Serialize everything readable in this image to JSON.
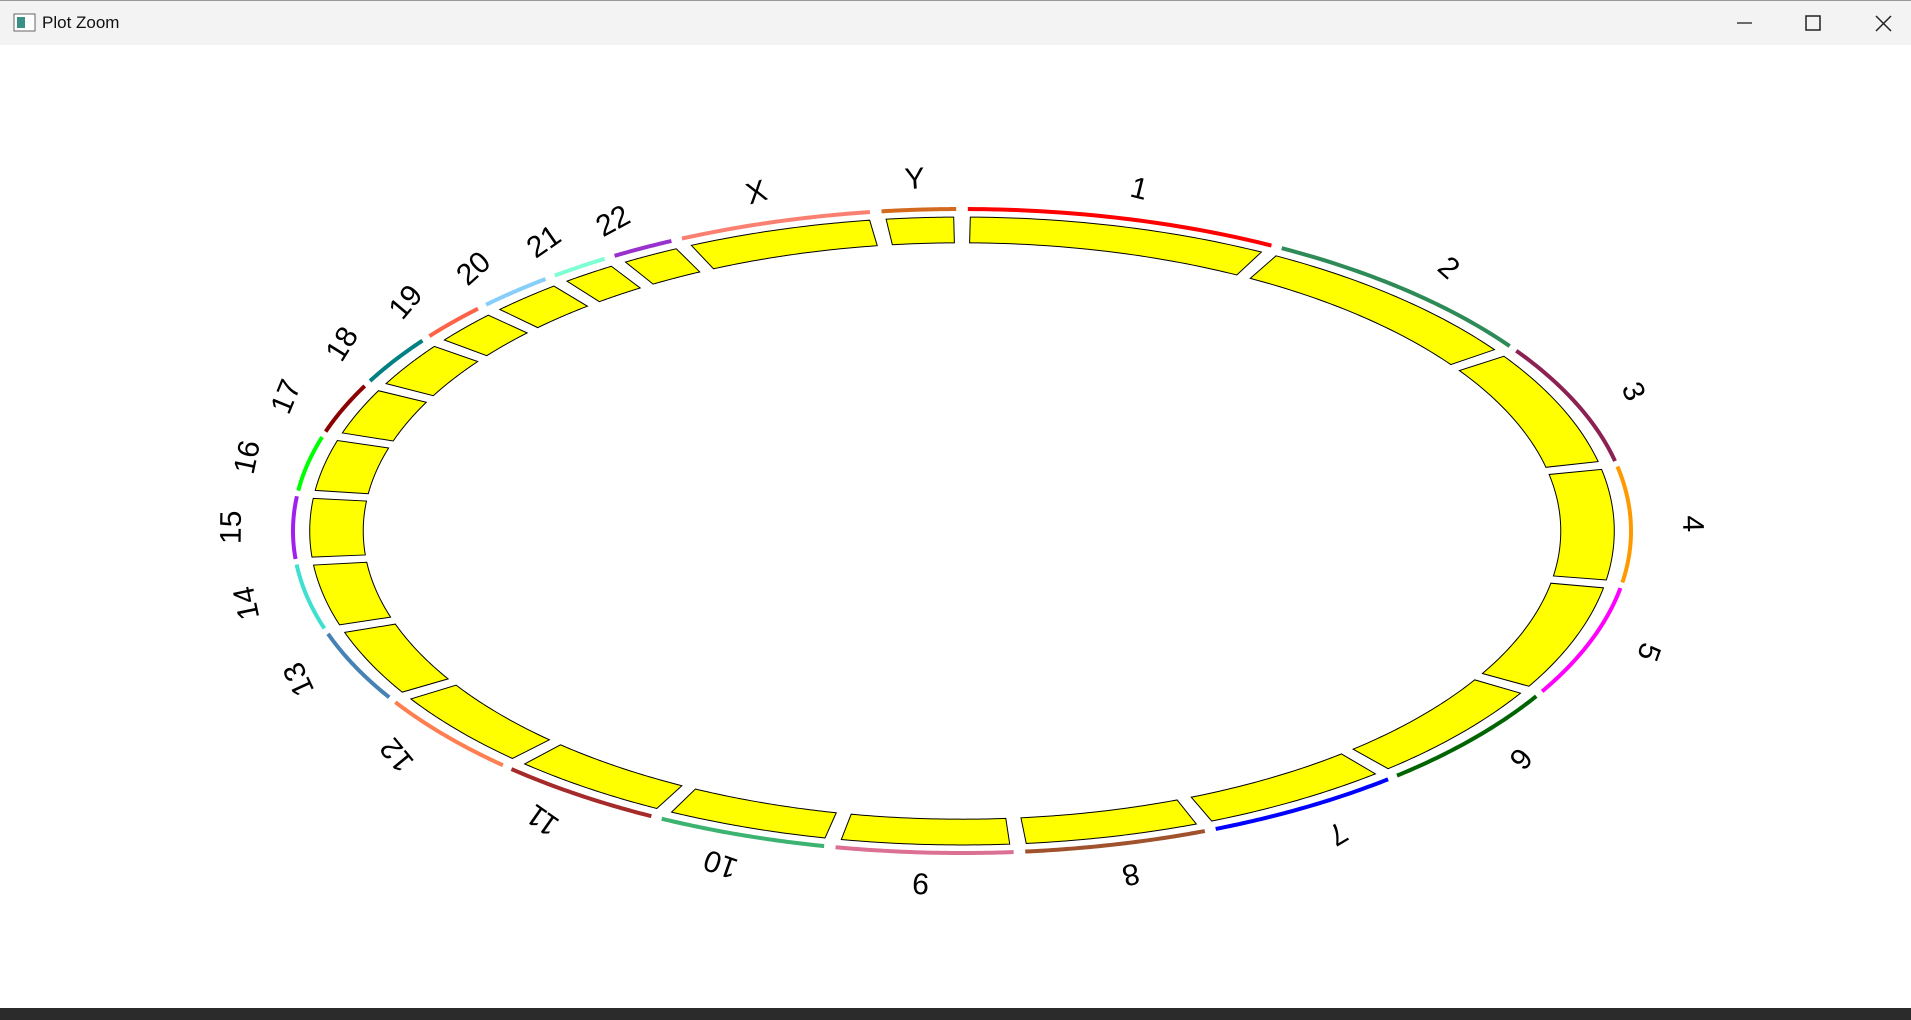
{
  "window": {
    "title": "Plot Zoom"
  },
  "sectors": [
    {
      "label": "1",
      "color": "#ff0000",
      "size": 249
    },
    {
      "label": "2",
      "color": "#2e8b57",
      "size": 243
    },
    {
      "label": "3",
      "color": "#8b2252",
      "size": 198
    },
    {
      "label": "4",
      "color": "#ff9900",
      "size": 191
    },
    {
      "label": "5",
      "color": "#ff00ff",
      "size": 181
    },
    {
      "label": "6",
      "color": "#006400",
      "size": 171
    },
    {
      "label": "7",
      "color": "#0000ff",
      "size": 159
    },
    {
      "label": "8",
      "color": "#a0522d",
      "size": 146
    },
    {
      "label": "9",
      "color": "#db7093",
      "size": 141
    },
    {
      "label": "10",
      "color": "#3cb371",
      "size": 136
    },
    {
      "label": "11",
      "color": "#a52a2a",
      "size": 135
    },
    {
      "label": "12",
      "color": "#ff7f50",
      "size": 134
    },
    {
      "label": "13",
      "color": "#4682b4",
      "size": 115
    },
    {
      "label": "14",
      "color": "#40e0d0",
      "size": 107
    },
    {
      "label": "15",
      "color": "#a020f0",
      "size": 103
    },
    {
      "label": "16",
      "color": "#00ff00",
      "size": 90
    },
    {
      "label": "17",
      "color": "#8b0000",
      "size": 81
    },
    {
      "label": "18",
      "color": "#008080",
      "size": 78
    },
    {
      "label": "19",
      "color": "#ff6347",
      "size": 59
    },
    {
      "label": "20",
      "color": "#87cefa",
      "size": 63
    },
    {
      "label": "21",
      "color": "#7fffd4",
      "size": 48
    },
    {
      "label": "22",
      "color": "#9932cc",
      "size": 51
    },
    {
      "label": "X",
      "color": "#fa8072",
      "size": 155
    },
    {
      "label": "Y",
      "color": "#d2691e",
      "size": 59
    }
  ]
}
